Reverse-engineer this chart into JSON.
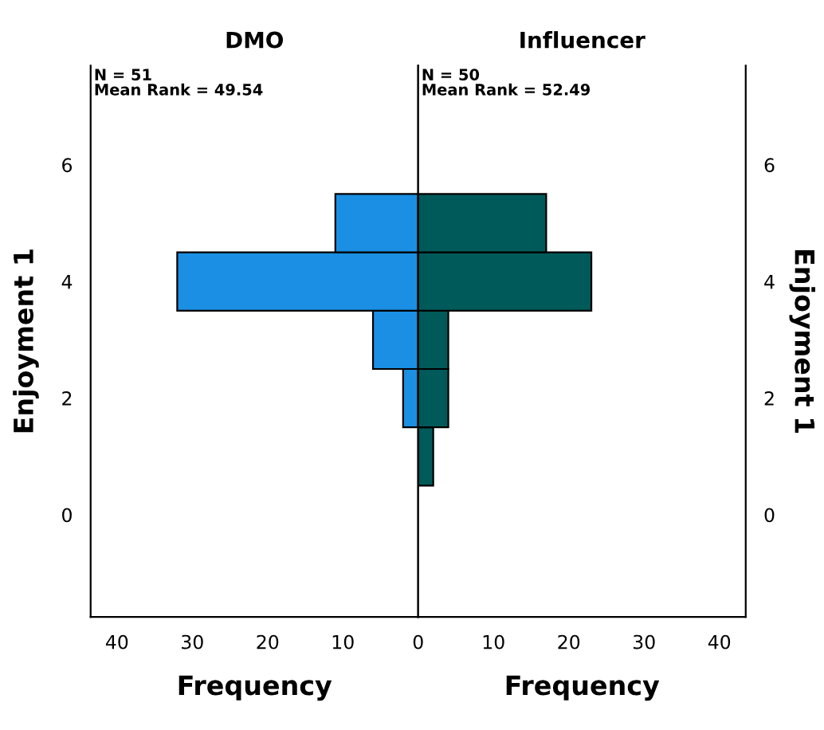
{
  "chart_data": [
    {
      "type": "histogram",
      "orientation": "horizontal",
      "title": "DMO",
      "xlabel": "Frequency",
      "ylabel": "Enjoyment 1",
      "bins": [
        1.5,
        2.5,
        3.5,
        4.5,
        5.5
      ],
      "values": [
        2,
        6,
        32,
        11
      ],
      "color": "#1a8fe3",
      "xlim": [
        43.5,
        0
      ],
      "xticks": [
        40,
        30,
        20,
        10,
        0
      ],
      "ylim": [
        -1.75,
        7.7
      ],
      "yticks": [
        0,
        2,
        4,
        6
      ],
      "annotations": [
        "N = 51\nMean Rank = 49.54"
      ],
      "grid": false
    },
    {
      "type": "histogram",
      "orientation": "horizontal",
      "title": "Influencer",
      "xlabel": "Frequency",
      "ylabel": "Enjoyment 1",
      "bins": [
        0.5,
        1.5,
        2.5,
        3.5,
        4.5,
        5.5
      ],
      "values": [
        2,
        4,
        4,
        23,
        17
      ],
      "color": "#005a5a",
      "xlim": [
        0,
        43.5
      ],
      "xticks": [
        10,
        20,
        30,
        40
      ],
      "ylim": [
        -1.75,
        7.7
      ],
      "yticks": [
        0,
        2,
        4,
        6
      ],
      "annotations": [
        "N = 50\nMean Rank = 52.49"
      ],
      "grid": false
    }
  ]
}
